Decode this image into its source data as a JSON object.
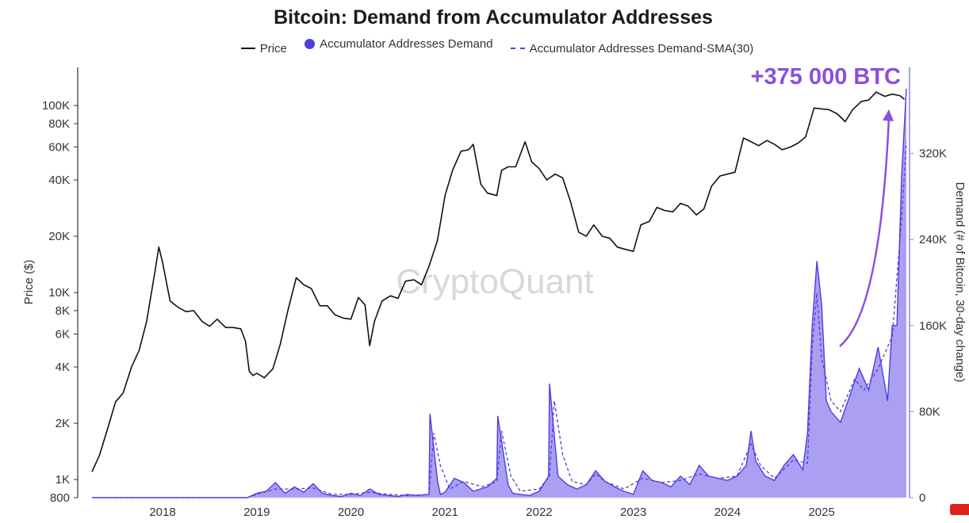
{
  "chart_data": {
    "type": "line",
    "title": "Bitcoin: Demand from Accumulator Addresses",
    "legend": [
      "Price",
      "Accumulator Addresses Demand",
      "Accumulator Addresses Demand-SMA(30)"
    ],
    "legend_position": "top-center",
    "ylabel_left": "Price ($)",
    "ylabel_right": "Demand (# of Bitcoin, 30-day change)",
    "y_left_scale": "log",
    "y_left_range": [
      800,
      160000
    ],
    "y_left_ticks": [
      {
        "label": "800",
        "value": 800
      },
      {
        "label": "1K",
        "value": 1000
      },
      {
        "label": "2K",
        "value": 2000
      },
      {
        "label": "4K",
        "value": 4000
      },
      {
        "label": "6K",
        "value": 6000
      },
      {
        "label": "8K",
        "value": 8000
      },
      {
        "label": "10K",
        "value": 10000
      },
      {
        "label": "20K",
        "value": 20000
      },
      {
        "label": "40K",
        "value": 40000
      },
      {
        "label": "60K",
        "value": 60000
      },
      {
        "label": "80K",
        "value": 80000
      },
      {
        "label": "100K",
        "value": 100000
      }
    ],
    "y_right_range": [
      0,
      400000
    ],
    "y_right_ticks": [
      {
        "label": "0",
        "value": 0
      },
      {
        "label": "80K",
        "value": 80000
      },
      {
        "label": "160K",
        "value": 160000
      },
      {
        "label": "240K",
        "value": 240000
      },
      {
        "label": "320K",
        "value": 320000
      }
    ],
    "x_range": [
      2017.25,
      2025.9
    ],
    "x_ticks": [
      {
        "label": "2018",
        "value": 2018
      },
      {
        "label": "2019",
        "value": 2019
      },
      {
        "label": "2020",
        "value": 2020
      },
      {
        "label": "2021",
        "value": 2021
      },
      {
        "label": "2022",
        "value": 2022
      },
      {
        "label": "2023",
        "value": 2023
      },
      {
        "label": "2024",
        "value": 2024
      },
      {
        "label": "2025",
        "value": 2025
      }
    ],
    "grid": false,
    "watermark": "CryptoQuant",
    "annotation": "+375 000 BTC",
    "colors": {
      "price": "#111111",
      "demand": "#4e3ee0",
      "demand_fill": "#9b8ef0",
      "sma": "#4e3ee0",
      "annotation": "#8a4fe0"
    },
    "series": [
      {
        "name": "Price",
        "axis": "left",
        "x": [
          2017.25,
          2017.33,
          2017.42,
          2017.5,
          2017.58,
          2017.67,
          2017.75,
          2017.83,
          2017.92,
          2017.96,
          2018.0,
          2018.08,
          2018.17,
          2018.25,
          2018.33,
          2018.42,
          2018.5,
          2018.58,
          2018.67,
          2018.75,
          2018.83,
          2018.88,
          2018.92,
          2018.96,
          2019.0,
          2019.08,
          2019.17,
          2019.25,
          2019.33,
          2019.42,
          2019.5,
          2019.58,
          2019.67,
          2019.75,
          2019.83,
          2019.92,
          2020.0,
          2020.08,
          2020.15,
          2020.2,
          2020.25,
          2020.33,
          2020.42,
          2020.5,
          2020.58,
          2020.67,
          2020.75,
          2020.83,
          2020.92,
          2021.0,
          2021.08,
          2021.17,
          2021.25,
          2021.3,
          2021.38,
          2021.45,
          2021.55,
          2021.6,
          2021.67,
          2021.75,
          2021.85,
          2021.92,
          2022.0,
          2022.08,
          2022.17,
          2022.25,
          2022.33,
          2022.42,
          2022.5,
          2022.58,
          2022.67,
          2022.75,
          2022.83,
          2022.92,
          2023.0,
          2023.08,
          2023.17,
          2023.25,
          2023.33,
          2023.42,
          2023.5,
          2023.58,
          2023.67,
          2023.75,
          2023.83,
          2023.92,
          2024.0,
          2024.08,
          2024.17,
          2024.25,
          2024.33,
          2024.42,
          2024.5,
          2024.58,
          2024.67,
          2024.75,
          2024.83,
          2024.92,
          2025.0,
          2025.08,
          2025.17,
          2025.25,
          2025.33,
          2025.42,
          2025.5,
          2025.58,
          2025.67,
          2025.75,
          2025.83,
          2025.88
        ],
        "y": [
          1100,
          1350,
          1900,
          2600,
          2900,
          4000,
          4900,
          7000,
          13000,
          17500,
          14500,
          9000,
          8300,
          7900,
          8000,
          7000,
          6600,
          7200,
          6500,
          6500,
          6400,
          5500,
          3800,
          3600,
          3700,
          3500,
          3900,
          5300,
          8000,
          12000,
          11000,
          10500,
          8500,
          8500,
          7600,
          7300,
          7200,
          9400,
          8600,
          5200,
          7000,
          9000,
          9600,
          9300,
          11500,
          11700,
          11000,
          13800,
          19000,
          33000,
          45000,
          57000,
          58000,
          62000,
          38000,
          34000,
          33000,
          45000,
          47000,
          47000,
          64000,
          50000,
          46000,
          40000,
          43000,
          41000,
          31000,
          21000,
          20000,
          23000,
          20000,
          19500,
          17500,
          17000,
          16600,
          23000,
          24000,
          28500,
          27500,
          27000,
          30000,
          29000,
          26000,
          28000,
          37000,
          42000,
          43000,
          44000,
          67000,
          64000,
          61000,
          65000,
          62000,
          58000,
          60000,
          63000,
          68000,
          97000,
          96000,
          95000,
          90000,
          82000,
          95000,
          105000,
          107000,
          118000,
          112000,
          115000,
          113000,
          108000
        ]
      },
      {
        "name": "Accumulator Addresses Demand",
        "axis": "right",
        "x": [
          2017.25,
          2018.0,
          2018.9,
          2019.0,
          2019.1,
          2019.2,
          2019.3,
          2019.4,
          2019.5,
          2019.6,
          2019.7,
          2019.8,
          2019.9,
          2020.0,
          2020.1,
          2020.2,
          2020.3,
          2020.4,
          2020.5,
          2020.6,
          2020.7,
          2020.83,
          2020.84,
          2020.92,
          2020.95,
          2021.0,
          2021.1,
          2021.2,
          2021.3,
          2021.45,
          2021.55,
          2021.56,
          2021.67,
          2021.72,
          2021.8,
          2021.9,
          2022.0,
          2022.1,
          2022.11,
          2022.2,
          2022.3,
          2022.4,
          2022.5,
          2022.6,
          2022.7,
          2022.8,
          2022.9,
          2023.0,
          2023.1,
          2023.2,
          2023.3,
          2023.4,
          2023.5,
          2023.6,
          2023.7,
          2023.8,
          2023.9,
          2024.0,
          2024.1,
          2024.2,
          2024.25,
          2024.3,
          2024.4,
          2024.5,
          2024.6,
          2024.7,
          2024.8,
          2024.85,
          2024.9,
          2024.95,
          2025.0,
          2025.05,
          2025.1,
          2025.2,
          2025.3,
          2025.4,
          2025.5,
          2025.6,
          2025.7,
          2025.75,
          2025.8,
          2025.85,
          2025.9
        ],
        "y": [
          0,
          0,
          0,
          4000,
          6000,
          14000,
          4000,
          10000,
          5000,
          13000,
          4000,
          2000,
          1000,
          4000,
          2000,
          8000,
          3000,
          2000,
          1000,
          3000,
          2000,
          3000,
          78000,
          16000,
          3000,
          5000,
          18000,
          14000,
          6000,
          10000,
          18000,
          76000,
          12000,
          4000,
          3000,
          2000,
          6000,
          20000,
          106000,
          20000,
          12000,
          8000,
          12000,
          25000,
          15000,
          10000,
          6000,
          3000,
          25000,
          16000,
          14000,
          10000,
          20000,
          12000,
          30000,
          20000,
          18000,
          16000,
          20000,
          30000,
          62000,
          34000,
          20000,
          16000,
          30000,
          40000,
          26000,
          60000,
          160000,
          220000,
          180000,
          90000,
          80000,
          70000,
          95000,
          120000,
          100000,
          140000,
          90000,
          160000,
          160000,
          300000,
          380000
        ]
      },
      {
        "name": "Accumulator Addresses Demand-SMA(30)",
        "axis": "right",
        "x": [
          2017.25,
          2018.0,
          2018.9,
          2019.0,
          2019.2,
          2019.4,
          2019.6,
          2019.8,
          2020.0,
          2020.2,
          2020.4,
          2020.6,
          2020.83,
          2020.88,
          2020.95,
          2021.05,
          2021.2,
          2021.4,
          2021.55,
          2021.6,
          2021.7,
          2021.8,
          2022.0,
          2022.11,
          2022.16,
          2022.25,
          2022.35,
          2022.5,
          2022.6,
          2022.7,
          2022.9,
          2023.1,
          2023.3,
          2023.5,
          2023.7,
          2023.9,
          2024.1,
          2024.25,
          2024.35,
          2024.5,
          2024.7,
          2024.85,
          2024.9,
          2024.95,
          2025.0,
          2025.1,
          2025.2,
          2025.35,
          2025.45,
          2025.6,
          2025.75,
          2025.85,
          2025.9
        ],
        "y": [
          0,
          0,
          0,
          3000,
          8000,
          8000,
          9000,
          3000,
          3000,
          5000,
          3000,
          2000,
          3000,
          60000,
          30000,
          8000,
          15000,
          10000,
          15000,
          62000,
          20000,
          6000,
          8000,
          20000,
          90000,
          40000,
          15000,
          12000,
          22000,
          15000,
          8000,
          18000,
          14000,
          16000,
          22000,
          18000,
          20000,
          50000,
          30000,
          18000,
          35000,
          32000,
          140000,
          190000,
          130000,
          90000,
          80000,
          110000,
          100000,
          120000,
          150000,
          260000,
          330000
        ]
      }
    ]
  }
}
